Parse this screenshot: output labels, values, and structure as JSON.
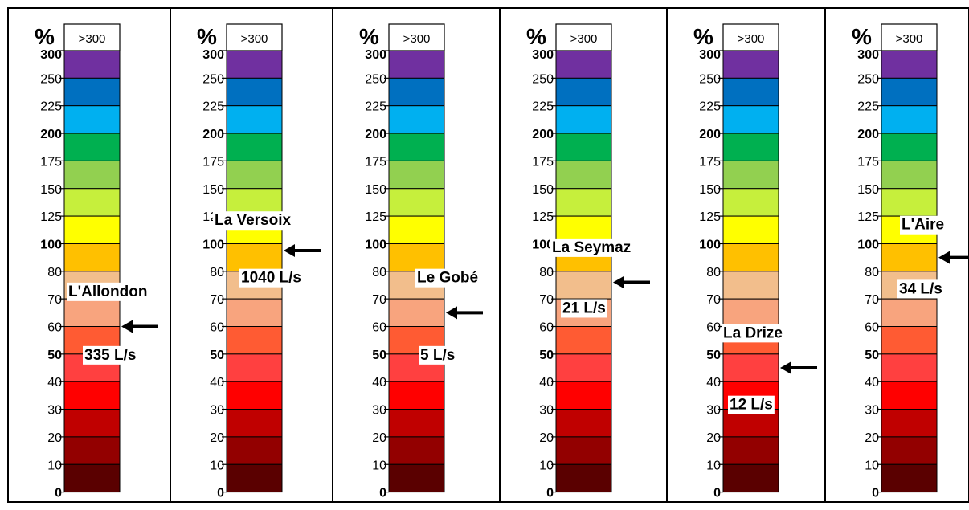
{
  "unit_label": "%",
  "overflow_label": ">300",
  "scale": {
    "ticks": [
      "300",
      "250",
      "225",
      "200",
      "175",
      "150",
      "125",
      "100",
      "80",
      "70",
      "60",
      "50",
      "40",
      "30",
      "20",
      "10",
      "0"
    ],
    "bold_ticks": [
      "300",
      "200",
      "100",
      "50",
      "0"
    ],
    "band_colors": [
      "#7030a0",
      "#0070c0",
      "#00b0f0",
      "#00b050",
      "#92d050",
      "#c6ef3c",
      "#ffff00",
      "#ffc000",
      "#f2be8c",
      "#f8a47e",
      "#ff5b33",
      "#ff4040",
      "#ff0000",
      "#c00000",
      "#930000",
      "#5a0000"
    ]
  },
  "chart_data": [
    {
      "type": "bar",
      "station": "L'Allondon",
      "flow": "335 L/s",
      "value_percent": 60
    },
    {
      "type": "bar",
      "station": "La Versoix",
      "flow": "1040 L/s",
      "value_percent": 95
    },
    {
      "type": "bar",
      "station": "Le Gobé",
      "flow": "5 L/s",
      "value_percent": 65
    },
    {
      "type": "bar",
      "station": "La Seymaz",
      "flow": "21 L/s",
      "value_percent": 76
    },
    {
      "type": "bar",
      "station": "La Drize",
      "flow": "12 L/s",
      "value_percent": 45
    },
    {
      "type": "bar",
      "station": "L'Aire",
      "flow": "34 L/s",
      "value_percent": 90
    }
  ]
}
